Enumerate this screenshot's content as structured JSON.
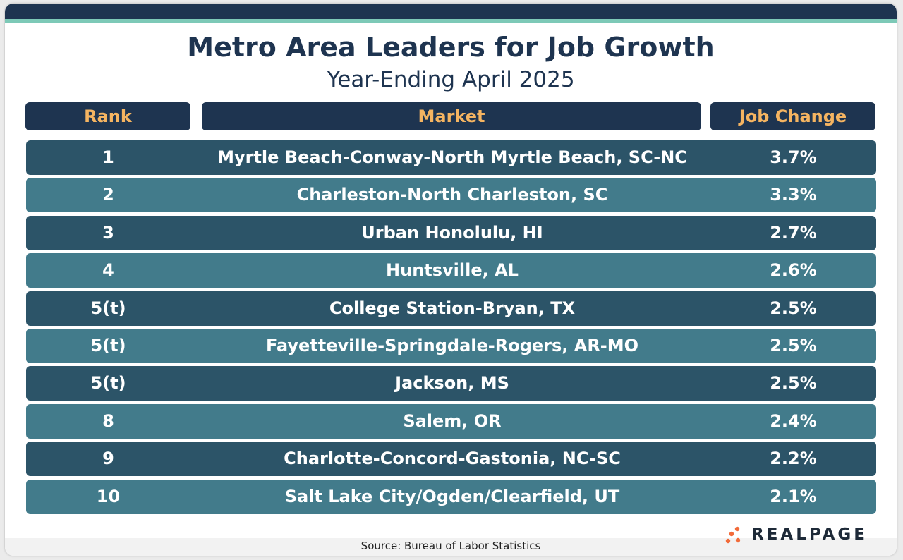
{
  "title": "Metro Area Leaders for Job Growth",
  "subtitle": "Year-Ending April 2025",
  "columns": {
    "rank": "Rank",
    "market": "Market",
    "change": "Job Change"
  },
  "source": "Source: Bureau of Labor Statistics",
  "logo": {
    "text": "REALPAGE"
  },
  "colors": {
    "navy": "#1e3450",
    "header_text": "#f5b461",
    "row_dark": "#2c5468",
    "row_light": "#427b8b",
    "accent_teal": "#7dc9b7",
    "logo_orange": "#f26b3a"
  },
  "chart_data": {
    "type": "table",
    "title": "Metro Area Leaders for Job Growth",
    "subtitle": "Year-Ending April 2025",
    "columns": [
      "Rank",
      "Market",
      "Job Change"
    ],
    "rows": [
      {
        "rank": "1",
        "market": "Myrtle Beach-Conway-North Myrtle Beach, SC-NC",
        "change": "3.7%"
      },
      {
        "rank": "2",
        "market": "Charleston-North Charleston, SC",
        "change": "3.3%"
      },
      {
        "rank": "3",
        "market": "Urban Honolulu, HI",
        "change": "2.7%"
      },
      {
        "rank": "4",
        "market": "Huntsville, AL",
        "change": "2.6%"
      },
      {
        "rank": "5(t)",
        "market": "College Station-Bryan, TX",
        "change": "2.5%"
      },
      {
        "rank": "5(t)",
        "market": "Fayetteville-Springdale-Rogers, AR-MO",
        "change": "2.5%"
      },
      {
        "rank": "5(t)",
        "market": "Jackson, MS",
        "change": "2.5%"
      },
      {
        "rank": "8",
        "market": "Salem, OR",
        "change": "2.4%"
      },
      {
        "rank": "9",
        "market": "Charlotte-Concord-Gastonia, NC-SC",
        "change": "2.2%"
      },
      {
        "rank": "10",
        "market": "Salt Lake City/Ogden/Clearfield, UT",
        "change": "2.1%"
      }
    ]
  }
}
